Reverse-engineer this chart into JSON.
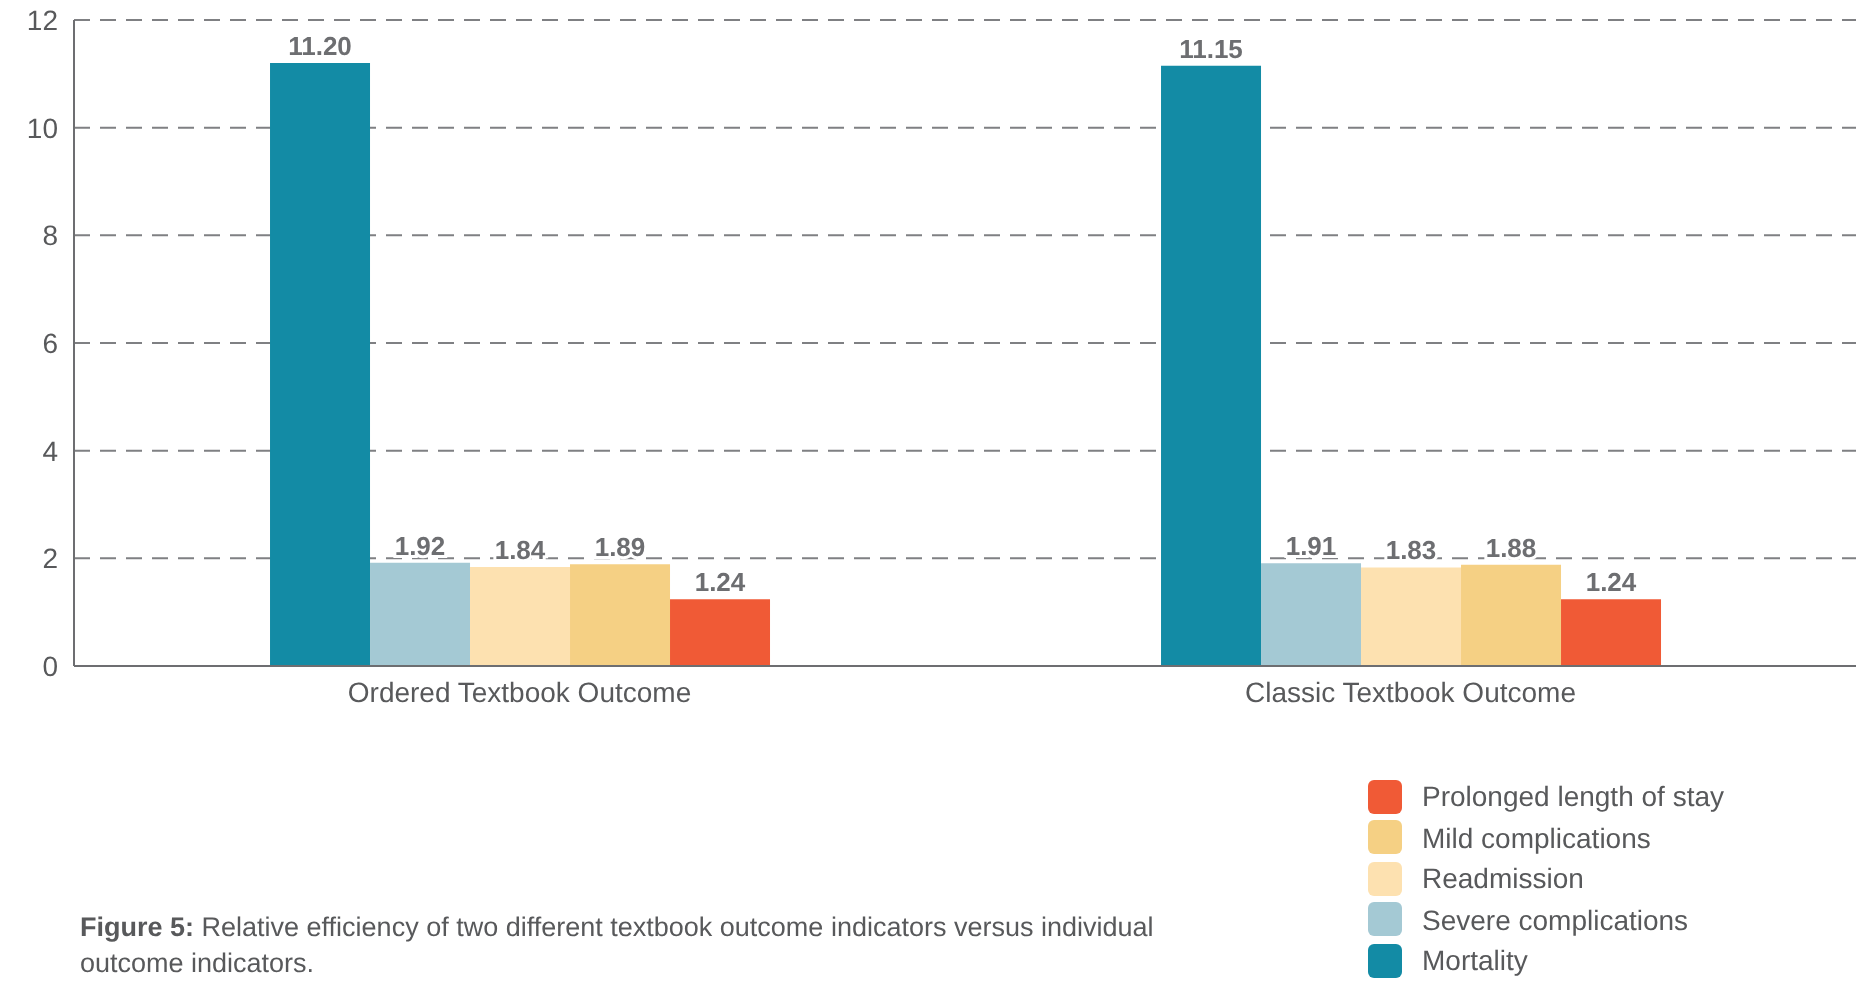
{
  "chart_data": {
    "type": "bar",
    "categories": [
      "Ordered Textbook Outcome",
      "Classic Textbook Outcome"
    ],
    "series": [
      {
        "name": "Mortality",
        "color": "#138ba5",
        "values": [
          11.2,
          11.15
        ],
        "value_labels": [
          "11.20",
          "11.15"
        ]
      },
      {
        "name": "Severe complications",
        "color": "#a4c9d4",
        "values": [
          1.92,
          1.91
        ],
        "value_labels": [
          "1.92",
          "1.91"
        ]
      },
      {
        "name": "Readmission",
        "color": "#fde1b0",
        "values": [
          1.84,
          1.83
        ],
        "value_labels": [
          "1.84",
          "1.83"
        ]
      },
      {
        "name": "Mild complications",
        "color": "#f5d084",
        "values": [
          1.89,
          1.88
        ],
        "value_labels": [
          "1.89",
          "1.88"
        ]
      },
      {
        "name": "Prolonged length of stay",
        "color": "#f05a36",
        "values": [
          1.24,
          1.24
        ],
        "value_labels": [
          "1.24",
          "1.24"
        ]
      }
    ],
    "ylim": [
      0,
      12
    ],
    "yticks": [
      0,
      2,
      4,
      6,
      8,
      10,
      12
    ],
    "grid": "y",
    "legend": "bottom right",
    "annotations": [
      "Figure 5: Relative efficiency of two different textbook outcome indicators versus individual outcome indicators."
    ]
  }
}
